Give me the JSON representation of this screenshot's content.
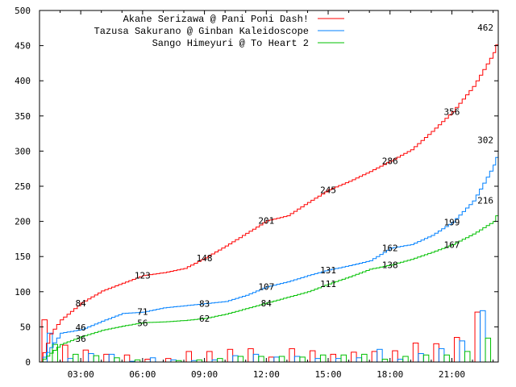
{
  "chart_data": {
    "type": "line",
    "title": "",
    "xlabel": "",
    "ylabel": "",
    "xlim": [
      1,
      23.25
    ],
    "ylim": [
      0,
      500
    ],
    "yticks": [
      0,
      50,
      100,
      150,
      200,
      250,
      300,
      350,
      400,
      450,
      500
    ],
    "yticklabels": [
      "0",
      "50",
      "100",
      "150",
      "200",
      "250",
      "300",
      "350",
      "400",
      "450",
      "500"
    ],
    "xticks": [
      3,
      6,
      9,
      12,
      15,
      18,
      21
    ],
    "xticklabels": [
      "03:00",
      "06:00",
      "09:00",
      "12:00",
      "15:00",
      "18:00",
      "21:00"
    ],
    "legend_position": "top-right",
    "bar_hours": [
      1,
      2,
      3,
      4,
      5,
      6,
      7,
      8,
      9,
      10,
      11,
      12,
      13,
      14,
      15,
      16,
      17,
      18,
      19,
      20,
      21,
      22
    ],
    "series": [
      {
        "name": "Akane Serizawa @ Pani Poni Dash!",
        "color": "#ff0000",
        "points": [
          [
            1,
            0
          ],
          [
            1.5,
            40
          ],
          [
            2,
            60
          ],
          [
            3,
            84
          ],
          [
            4,
            101
          ],
          [
            5,
            112
          ],
          [
            6,
            123
          ],
          [
            7,
            127
          ],
          [
            8,
            133
          ],
          [
            9,
            148
          ],
          [
            10,
            165
          ],
          [
            11,
            183
          ],
          [
            12,
            201
          ],
          [
            13,
            208
          ],
          [
            14,
            227
          ],
          [
            15,
            245
          ],
          [
            16,
            257
          ],
          [
            17,
            271
          ],
          [
            18,
            286
          ],
          [
            19,
            302
          ],
          [
            20,
            328
          ],
          [
            21,
            356
          ],
          [
            22,
            392
          ],
          [
            23,
            440
          ],
          [
            23.25,
            462
          ]
        ],
        "labels": [
          [
            3,
            84
          ],
          [
            6,
            123
          ],
          [
            9,
            148
          ],
          [
            12,
            201
          ],
          [
            15,
            245
          ],
          [
            18,
            286
          ],
          [
            21,
            356
          ],
          [
            23.25,
            462
          ]
        ],
        "hourly": [
          60,
          24,
          17,
          11,
          10,
          4,
          5,
          15,
          15,
          18,
          19,
          7,
          19,
          16,
          11,
          14,
          15,
          16,
          27,
          26,
          35,
          71
        ]
      },
      {
        "name": "Tazusa Sakurano @ Ginban Kaleidoscope",
        "color": "#0080ff",
        "points": [
          [
            1,
            0
          ],
          [
            2,
            41
          ],
          [
            3,
            46
          ],
          [
            4,
            58
          ],
          [
            5,
            69
          ],
          [
            6,
            71
          ],
          [
            7,
            77
          ],
          [
            8,
            80
          ],
          [
            9,
            83
          ],
          [
            10,
            86
          ],
          [
            11,
            95
          ],
          [
            12,
            107
          ],
          [
            13,
            114
          ],
          [
            14,
            123
          ],
          [
            15,
            131
          ],
          [
            16,
            137
          ],
          [
            17,
            144
          ],
          [
            18,
            162
          ],
          [
            19,
            167
          ],
          [
            20,
            180
          ],
          [
            21,
            199
          ],
          [
            22,
            229
          ],
          [
            23,
            280
          ],
          [
            23.25,
            302
          ]
        ],
        "labels": [
          [
            3,
            46
          ],
          [
            6,
            71
          ],
          [
            9,
            83
          ],
          [
            12,
            107
          ],
          [
            15,
            131
          ],
          [
            18,
            162
          ],
          [
            21,
            199
          ],
          [
            23.25,
            302
          ]
        ],
        "hourly": [
          41,
          5,
          12,
          11,
          1,
          6,
          3,
          2,
          3,
          9,
          11,
          7,
          8,
          5,
          5,
          6,
          18,
          4,
          12,
          19,
          30,
          73
        ]
      },
      {
        "name": "Sango Himeyuri @ To Heart 2",
        "color": "#00c000",
        "points": [
          [
            1,
            0
          ],
          [
            2,
            25
          ],
          [
            3,
            36
          ],
          [
            4,
            45
          ],
          [
            5,
            51
          ],
          [
            6,
            56
          ],
          [
            7,
            57
          ],
          [
            8,
            59
          ],
          [
            9,
            62
          ],
          [
            10,
            68
          ],
          [
            11,
            76
          ],
          [
            12,
            84
          ],
          [
            13,
            92
          ],
          [
            14,
            100
          ],
          [
            15,
            111
          ],
          [
            16,
            121
          ],
          [
            17,
            132
          ],
          [
            18,
            138
          ],
          [
            19,
            146
          ],
          [
            20,
            156
          ],
          [
            21,
            167
          ],
          [
            22,
            182
          ],
          [
            23,
            200
          ],
          [
            23.25,
            216
          ]
        ],
        "labels": [
          [
            3,
            36
          ],
          [
            6,
            56
          ],
          [
            9,
            62
          ],
          [
            12,
            84
          ],
          [
            15,
            111
          ],
          [
            18,
            138
          ],
          [
            21,
            167
          ],
          [
            23.25,
            216
          ]
        ],
        "hourly": [
          25,
          11,
          9,
          6,
          3,
          0,
          2,
          3,
          5,
          8,
          8,
          8,
          7,
          10,
          10,
          11,
          4,
          8,
          10,
          10,
          15,
          34
        ]
      }
    ]
  }
}
